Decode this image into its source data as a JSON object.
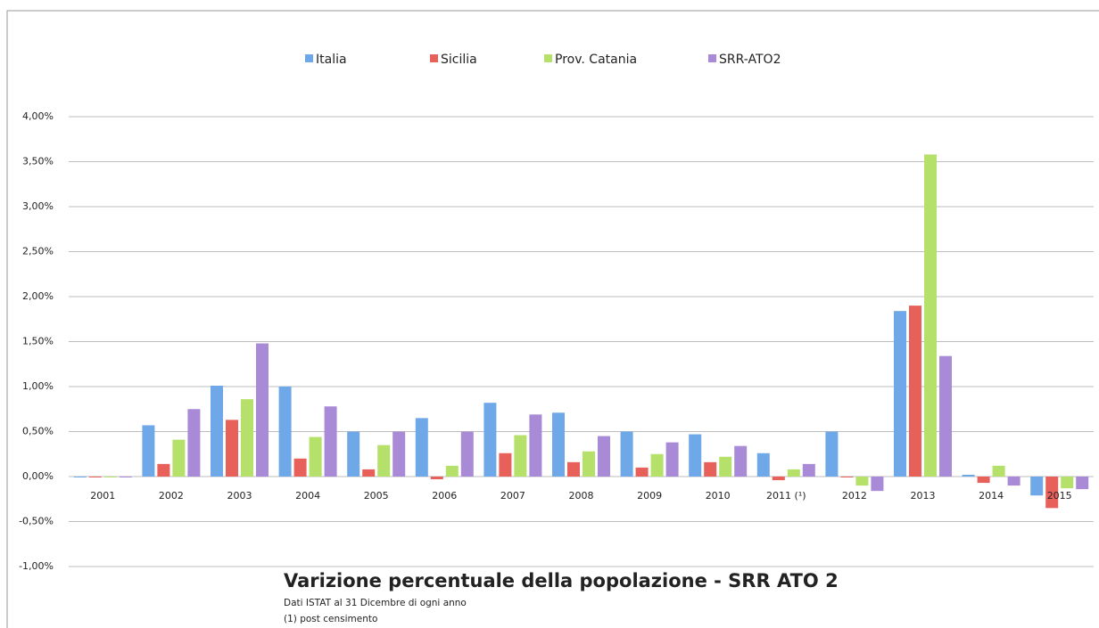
{
  "chart_data": {
    "type": "bar",
    "title": "Varizione percentuale della popolazione - SRR ATO 2",
    "notes": [
      "Dati ISTAT al 31 Dicembre di ogni anno",
      "(1) post censimento"
    ],
    "categories": [
      "2001",
      "2002",
      "2003",
      "2004",
      "2005",
      "2006",
      "2007",
      "2008",
      "2009",
      "2010",
      "2011 (¹)",
      "2012",
      "2013",
      "2014",
      "2015"
    ],
    "series": [
      {
        "name": "Italia",
        "color": "#6fa8e8",
        "values": [
          0,
          0.57,
          1.01,
          1.0,
          0.5,
          0.65,
          0.82,
          0.71,
          0.5,
          0.47,
          0.26,
          0.5,
          1.84,
          0.02,
          -0.21
        ]
      },
      {
        "name": "Sicilia",
        "color": "#e8605a",
        "values": [
          0,
          0.14,
          0.63,
          0.2,
          0.08,
          -0.03,
          0.26,
          0.16,
          0.1,
          0.16,
          -0.04,
          0,
          1.9,
          -0.07,
          -0.35
        ]
      },
      {
        "name": "Prov. Catania",
        "color": "#b5e06a",
        "values": [
          0,
          0.41,
          0.86,
          0.44,
          0.35,
          0.12,
          0.46,
          0.28,
          0.25,
          0.22,
          0.08,
          -0.1,
          3.58,
          0.12,
          -0.13
        ]
      },
      {
        "name": "SRR-ATO2",
        "color": "#a98ad6",
        "values": [
          0,
          0.75,
          1.48,
          0.78,
          0.5,
          0.5,
          0.69,
          0.45,
          0.38,
          0.34,
          0.14,
          -0.16,
          1.34,
          -0.1,
          -0.14
        ]
      }
    ],
    "ylim": [
      -1,
      4
    ],
    "yticks": [
      {
        "value": -1,
        "label": "-1,00%"
      },
      {
        "value": -0.5,
        "label": "-0,50%"
      },
      {
        "value": 0,
        "label": "0,00%"
      },
      {
        "value": 0.5,
        "label": "0,50%"
      },
      {
        "value": 1,
        "label": "1,00%"
      },
      {
        "value": 1.5,
        "label": "1,50%"
      },
      {
        "value": 2,
        "label": "2,00%"
      },
      {
        "value": 2.5,
        "label": "2,50%"
      },
      {
        "value": 3,
        "label": "3,00%"
      },
      {
        "value": 3.5,
        "label": "3,50%"
      },
      {
        "value": 4,
        "label": "4,00%"
      }
    ],
    "grid": true,
    "legend": "top"
  }
}
